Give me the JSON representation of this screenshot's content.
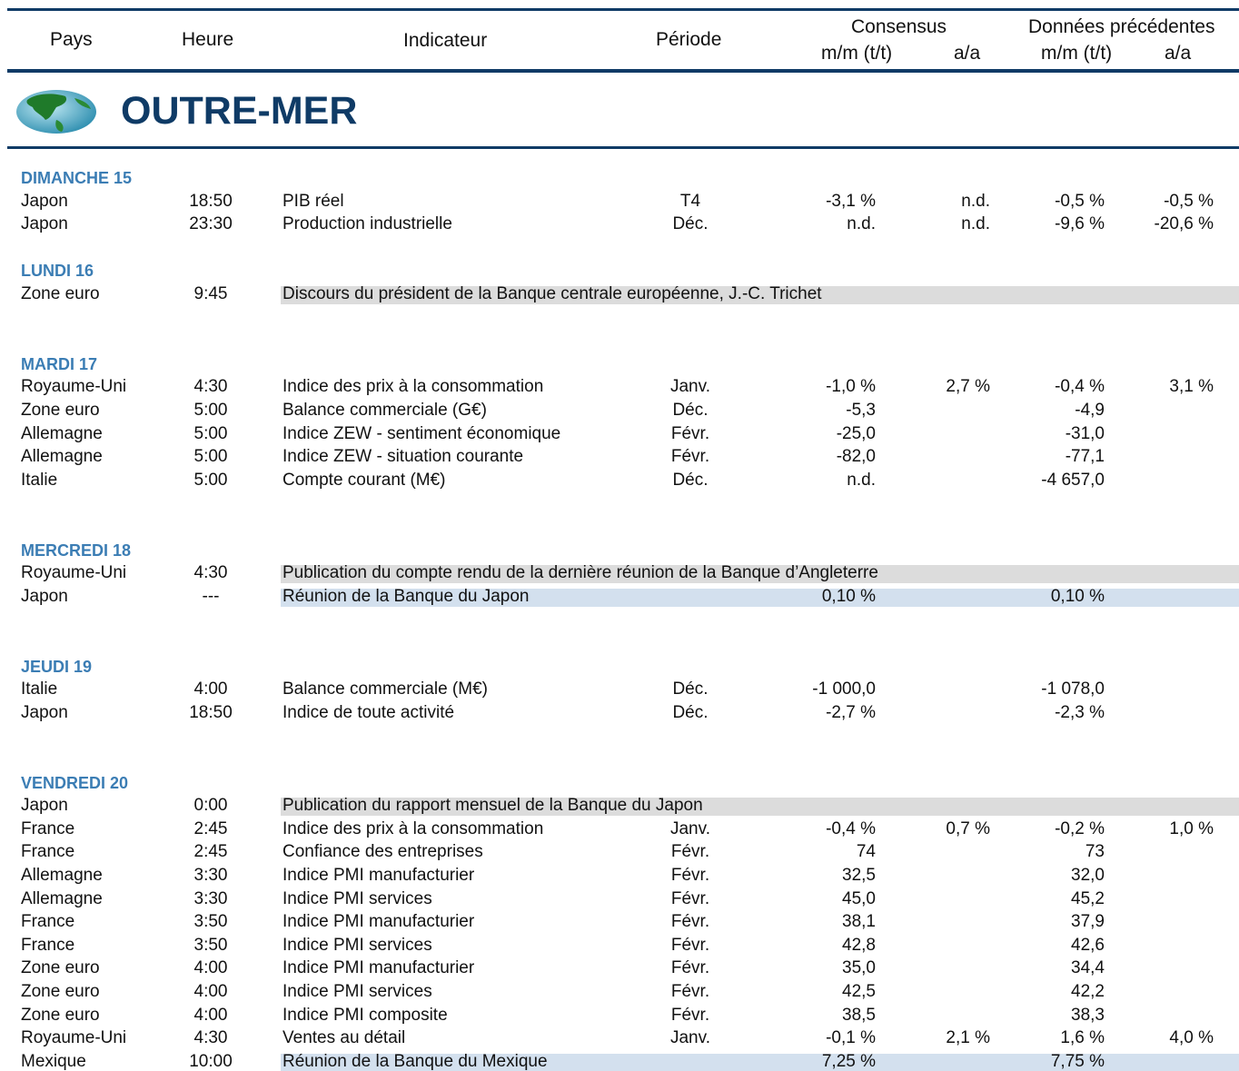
{
  "header": {
    "columns": [
      "Pays",
      "Heure",
      "Indicateur",
      "Période"
    ],
    "groups": [
      {
        "title": "Consensus",
        "sub": [
          "m/m (t/t)",
          "a/a"
        ]
      },
      {
        "title": "Données précédentes",
        "sub": [
          "m/m (t/t)",
          "a/a"
        ]
      }
    ]
  },
  "section": "OUTRE-MER",
  "days": [
    {
      "label": "DIMANCHE 15",
      "rows": [
        {
          "country": "Japon",
          "time": "18:50",
          "indicator": "PIB réel",
          "period": "T4",
          "cons_mm": "-3,1 %",
          "cons_aa": "n.d.",
          "prev_mm": "-0,5 %",
          "prev_aa": "-0,5 %"
        },
        {
          "country": "Japon",
          "time": "23:30",
          "indicator": "Production industrielle",
          "period": "Déc.",
          "cons_mm": "n.d.",
          "cons_aa": "n.d.",
          "prev_mm": "-9,6 %",
          "prev_aa": "-20,6 %"
        }
      ]
    },
    {
      "label": "LUNDI 16",
      "rows": [
        {
          "country": "Zone euro",
          "time": "9:45",
          "indicator": "Discours du président de la Banque centrale européenne, J.-C. Trichet",
          "highlight": "#dcdcdc"
        }
      ]
    },
    {
      "label": "MARDI 17",
      "rows": [
        {
          "country": "Royaume-Uni",
          "time": "4:30",
          "indicator": "Indice des prix à la consommation",
          "period": "Janv.",
          "cons_mm": "-1,0 %",
          "cons_aa": "2,7 %",
          "prev_mm": "-0,4 %",
          "prev_aa": "3,1 %"
        },
        {
          "country": "Zone euro",
          "time": "5:00",
          "indicator": "Balance commerciale (G€)",
          "period": "Déc.",
          "cons_mm": "-5,3",
          "prev_mm": "-4,9"
        },
        {
          "country": "Allemagne",
          "time": "5:00",
          "indicator": "Indice ZEW - sentiment économique",
          "period": "Févr.",
          "cons_mm": "-25,0",
          "prev_mm": "-31,0"
        },
        {
          "country": "Allemagne",
          "time": "5:00",
          "indicator": "Indice ZEW - situation courante",
          "period": "Févr.",
          "cons_mm": "-82,0",
          "prev_mm": "-77,1"
        },
        {
          "country": "Italie",
          "time": "5:00",
          "indicator": "Compte courant (M€)",
          "period": "Déc.",
          "cons_mm": "n.d.",
          "prev_mm": "-4 657,0"
        }
      ]
    },
    {
      "label": "MERCREDI 18",
      "rows": [
        {
          "country": "Royaume-Uni",
          "time": "4:30",
          "indicator": "Publication du compte rendu de la dernière réunion de la Banque d’Angleterre",
          "highlight": "#dcdcdc"
        },
        {
          "country": "Japon",
          "time": "---",
          "indicator": "Réunion de la Banque du Japon",
          "cons_mm": "0,10 %",
          "prev_mm": "0,10 %",
          "highlight": "#d3e0ee"
        }
      ]
    },
    {
      "label": "JEUDI 19",
      "rows": [
        {
          "country": "Italie",
          "time": "4:00",
          "indicator": "Balance commerciale (M€)",
          "period": "Déc.",
          "cons_mm": "-1 000,0",
          "prev_mm": "-1 078,0"
        },
        {
          "country": "Japon",
          "time": "18:50",
          "indicator": "Indice de toute activité",
          "period": "Déc.",
          "cons_mm": "-2,7 %",
          "prev_mm": "-2,3 %"
        }
      ]
    },
    {
      "label": "VENDREDI 20",
      "rows": [
        {
          "country": "Japon",
          "time": "0:00",
          "indicator": "Publication du rapport mensuel de la Banque du Japon",
          "highlight": "#dcdcdc"
        },
        {
          "country": "France",
          "time": "2:45",
          "indicator": "Indice des prix à la consommation",
          "period": "Janv.",
          "cons_mm": "-0,4 %",
          "cons_aa": "0,7 %",
          "prev_mm": "-0,2 %",
          "prev_aa": "1,0 %"
        },
        {
          "country": "France",
          "time": "2:45",
          "indicator": "Confiance des entreprises",
          "period": "Févr.",
          "cons_mm": "74",
          "prev_mm": "73"
        },
        {
          "country": "Allemagne",
          "time": "3:30",
          "indicator": "Indice PMI manufacturier",
          "period": "Févr.",
          "cons_mm": "32,5",
          "prev_mm": "32,0"
        },
        {
          "country": "Allemagne",
          "time": "3:30",
          "indicator": "Indice PMI services",
          "period": "Févr.",
          "cons_mm": "45,0",
          "prev_mm": "45,2"
        },
        {
          "country": "France",
          "time": "3:50",
          "indicator": "Indice PMI manufacturier",
          "period": "Févr.",
          "cons_mm": "38,1",
          "prev_mm": "37,9"
        },
        {
          "country": "France",
          "time": "3:50",
          "indicator": "Indice PMI services",
          "period": "Févr.",
          "cons_mm": "42,8",
          "prev_mm": "42,6"
        },
        {
          "country": "Zone euro",
          "time": "4:00",
          "indicator": "Indice PMI manufacturier",
          "period": "Févr.",
          "cons_mm": "35,0",
          "prev_mm": "34,4"
        },
        {
          "country": "Zone euro",
          "time": "4:00",
          "indicator": "Indice PMI services",
          "period": "Févr.",
          "cons_mm": "42,5",
          "prev_mm": "42,2"
        },
        {
          "country": "Zone euro",
          "time": "4:00",
          "indicator": "Indice PMI composite",
          "period": "Févr.",
          "cons_mm": "38,5",
          "prev_mm": "38,3"
        },
        {
          "country": "Royaume-Uni",
          "time": "4:30",
          "indicator": "Ventes au détail",
          "period": "Janv.",
          "cons_mm": "-0,1 %",
          "cons_aa": "2,1 %",
          "prev_mm": "1,6 %",
          "prev_aa": "4,0 %"
        },
        {
          "country": "Mexique",
          "time": "10:00",
          "indicator": "Réunion de la Banque du Mexique",
          "cons_mm": "7,25 %",
          "prev_mm": "7,75 %",
          "highlight": "#d3e0ee"
        }
      ]
    }
  ]
}
